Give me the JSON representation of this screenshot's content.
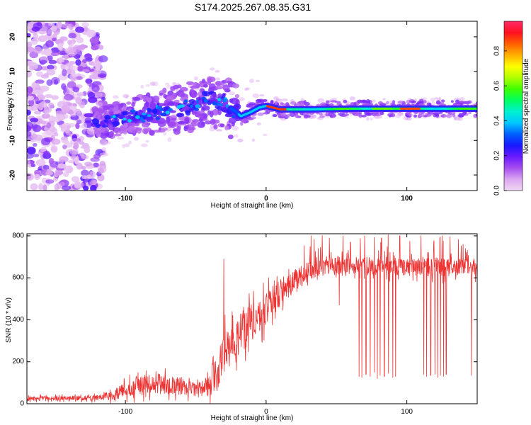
{
  "figure": {
    "title": "S174.2025.267.08.35.G31"
  },
  "chart_data": [
    {
      "type": "heatmap",
      "name": "spectrogram",
      "xlabel": "Height of straight line (km)",
      "ylabel": "Frequency (Hz)",
      "xlim": [
        -170,
        150
      ],
      "ylim": [
        -24.5,
        24.5
      ],
      "xticks": [
        {
          "value": -100,
          "label": "-100"
        },
        {
          "value": 0,
          "label": "0"
        },
        {
          "value": 100,
          "label": "100"
        }
      ],
      "yticks": [
        {
          "value": 20,
          "label": "20"
        },
        {
          "value": 10,
          "label": "10"
        },
        {
          "value": 0,
          "label": "0"
        },
        {
          "value": -10,
          "label": "-10"
        },
        {
          "value": -20,
          "label": "-20"
        }
      ],
      "colorbar": {
        "label": "Normalized spectral amplitude",
        "range": [
          0,
          0.97
        ],
        "ticks": [
          {
            "value": 0.0,
            "label": "0.0"
          },
          {
            "value": 0.2,
            "label": "0.2"
          },
          {
            "value": 0.4,
            "label": "0.4"
          },
          {
            "value": 0.6,
            "label": "0.6"
          },
          {
            "value": 0.8,
            "label": "0.8"
          }
        ],
        "colors": [
          "#f0d8f4",
          "#dca6f0",
          "#a54ef0",
          "#6a1aff",
          "#1818ff",
          "#0060ff",
          "#00c8ff",
          "#00f0d0",
          "#00ff60",
          "#40ff00",
          "#b0ff00",
          "#ffff00",
          "#ffb000",
          "#ff6000",
          "#ff1020",
          "#ff2a68"
        ]
      },
      "ridge": {
        "description": "dominant frequency track",
        "points": [
          [
            -118,
            -5
          ],
          [
            -100,
            -3.5
          ],
          [
            -80,
            -2
          ],
          [
            -60,
            -1
          ],
          [
            -45,
            1.5
          ],
          [
            -38,
            2
          ],
          [
            -30,
            0.5
          ],
          [
            -22,
            -1.5
          ],
          [
            -18,
            -3
          ],
          [
            -12,
            -2
          ],
          [
            -5,
            -0.5
          ],
          [
            0,
            0
          ],
          [
            10,
            -1
          ],
          [
            30,
            -1
          ],
          [
            60,
            -0.8
          ],
          [
            100,
            -0.8
          ],
          [
            150,
            -0.8
          ]
        ]
      }
    },
    {
      "type": "line",
      "name": "snr",
      "xlabel": "Height of straight line (km)",
      "ylabel": "SNR (10 * v/v)",
      "xlim": [
        -170,
        150
      ],
      "ylim": [
        0,
        810
      ],
      "xticks": [
        {
          "value": -100,
          "label": "-100"
        },
        {
          "value": 0,
          "label": "0"
        },
        {
          "value": 100,
          "label": "100"
        }
      ],
      "yticks": [
        {
          "value": 0,
          "label": "0"
        },
        {
          "value": 200,
          "label": "200"
        },
        {
          "value": 400,
          "label": "400"
        },
        {
          "value": 600,
          "label": "600"
        },
        {
          "value": 800,
          "label": "800"
        }
      ],
      "color": "#ee3333",
      "series": [
        {
          "name": "SNR",
          "trend": [
            [
              -170,
              25
            ],
            [
              -120,
              28
            ],
            [
              -108,
              40
            ],
            [
              -95,
              80
            ],
            [
              -80,
              100
            ],
            [
              -65,
              85
            ],
            [
              -50,
              70
            ],
            [
              -40,
              90
            ],
            [
              -35,
              140
            ],
            [
              -30,
              250
            ],
            [
              -25,
              320
            ],
            [
              -20,
              330
            ],
            [
              -12,
              380
            ],
            [
              0,
              450
            ],
            [
              10,
              530
            ],
            [
              20,
              580
            ],
            [
              30,
              630
            ],
            [
              40,
              660
            ],
            [
              60,
              660
            ],
            [
              100,
              650
            ],
            [
              150,
              650
            ]
          ],
          "noise": [
            [
              -170,
              15
            ],
            [
              -120,
              18
            ],
            [
              -105,
              40
            ],
            [
              -95,
              60
            ],
            [
              -80,
              70
            ],
            [
              -60,
              55
            ],
            [
              -45,
              45
            ],
            [
              -35,
              120
            ],
            [
              -20,
              150
            ],
            [
              0,
              110
            ],
            [
              20,
              80
            ],
            [
              40,
              60
            ],
            [
              150,
              60
            ]
          ],
          "dropouts": [
            {
              "x": 52,
              "value": 470
            },
            {
              "x": 66,
              "value": 130
            },
            {
              "x": 68,
              "value": 125
            },
            {
              "x": 71,
              "value": 140
            },
            {
              "x": 74,
              "value": 130
            },
            {
              "x": 77,
              "value": 150
            },
            {
              "x": 79,
              "value": 120
            },
            {
              "x": 81,
              "value": 135
            },
            {
              "x": 84,
              "value": 130
            },
            {
              "x": 87,
              "value": 145
            },
            {
              "x": 90,
              "value": 125
            },
            {
              "x": 92,
              "value": 130
            },
            {
              "x": 95,
              "value": 140
            },
            {
              "x": 112,
              "value": 140
            },
            {
              "x": 114,
              "value": 130
            },
            {
              "x": 117,
              "value": 135
            },
            {
              "x": 120,
              "value": 140
            },
            {
              "x": 122,
              "value": 125
            },
            {
              "x": 124,
              "value": 135
            },
            {
              "x": 126,
              "value": 130
            },
            {
              "x": 128,
              "value": 140
            },
            {
              "x": 146,
              "value": 135
            }
          ],
          "spikes": [
            {
              "x": -30,
              "value": 690
            },
            {
              "x": 32,
              "value": 800
            },
            {
              "x": 45,
              "value": 790
            },
            {
              "x": 60,
              "value": 770
            },
            {
              "x": 70,
              "value": 800
            },
            {
              "x": 82,
              "value": 790
            },
            {
              "x": 95,
              "value": 800
            },
            {
              "x": 110,
              "value": 800
            },
            {
              "x": 125,
              "value": 800
            },
            {
              "x": 140,
              "value": 760
            }
          ]
        }
      ]
    }
  ]
}
